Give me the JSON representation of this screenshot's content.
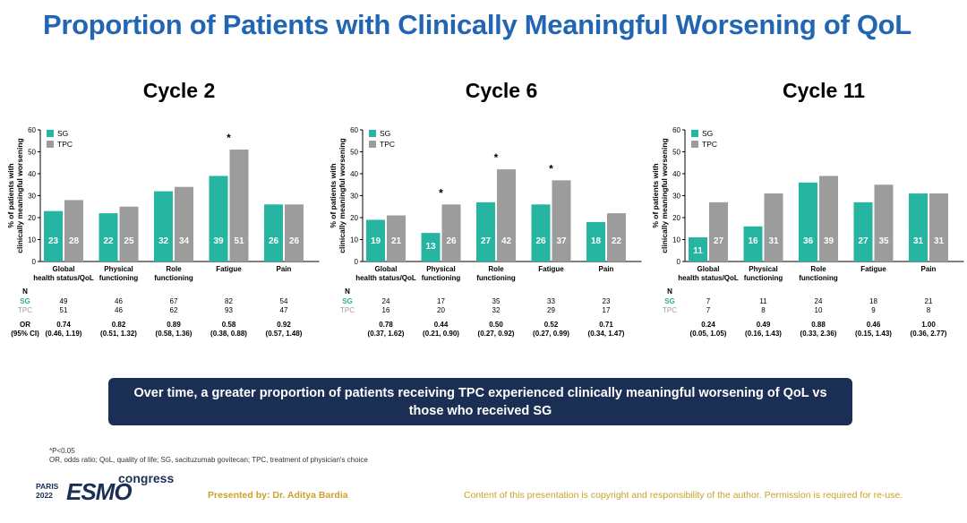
{
  "title": "Proportion of Patients with Clinically Meaningful Worsening of QoL",
  "colors": {
    "sg": "#26b5a0",
    "tpc": "#9c9c9c",
    "title": "#2266b3",
    "callout_bg": "#1b2f55",
    "footer": "#c9a227"
  },
  "chart_data": [
    {
      "type": "bar",
      "title": "Cycle 2",
      "ylabel": "% of patients with clinically meaningful worsening",
      "ylim": [
        0,
        60
      ],
      "yticks": [
        "0",
        "10",
        "20",
        "30",
        "40",
        "50",
        "60"
      ],
      "categories": [
        "Global health status/QoL",
        "Physical functioning",
        "Role functioning",
        "Fatigue",
        "Pain"
      ],
      "series": [
        {
          "name": "SG",
          "values": [
            23,
            22,
            32,
            39,
            26
          ]
        },
        {
          "name": "TPC",
          "values": [
            28,
            25,
            34,
            51,
            26
          ]
        }
      ],
      "significant": [
        "",
        "",
        "",
        "*",
        ""
      ],
      "n_label": "N",
      "n_sg": [
        "49",
        "46",
        "67",
        "82",
        "54"
      ],
      "n_tpc": [
        "51",
        "46",
        "62",
        "93",
        "47"
      ],
      "or_label": "OR",
      "ci_label": "(95% CI)",
      "or": [
        "0.74",
        "0.82",
        "0.89",
        "0.58",
        "0.92"
      ],
      "ci": [
        "(0.46, 1.19)",
        "(0.51, 1.32)",
        "(0.58, 1.36)",
        "(0.38, 0.88)",
        "(0.57, 1.48)"
      ]
    },
    {
      "type": "bar",
      "title": "Cycle 6",
      "ylabel": "% of patients with clinically meaningful worsening",
      "ylim": [
        0,
        60
      ],
      "yticks": [
        "0",
        "10",
        "20",
        "30",
        "40",
        "50",
        "60"
      ],
      "categories": [
        "Global health status/QoL",
        "Physical functioning",
        "Role functioning",
        "Fatigue",
        "Pain"
      ],
      "series": [
        {
          "name": "SG",
          "values": [
            19,
            13,
            27,
            26,
            18
          ]
        },
        {
          "name": "TPC",
          "values": [
            21,
            26,
            42,
            37,
            22
          ]
        }
      ],
      "significant": [
        "",
        "*",
        "*",
        "*",
        ""
      ],
      "n_label": "N",
      "n_sg": [
        "24",
        "17",
        "35",
        "33",
        "23"
      ],
      "n_tpc": [
        "16",
        "20",
        "32",
        "29",
        "17"
      ],
      "or_label": "",
      "ci_label": "",
      "or": [
        "0.78",
        "0.44",
        "0.50",
        "0.52",
        "0.71"
      ],
      "ci": [
        "(0.37, 1.62)",
        "(0.21, 0.90)",
        "(0.27, 0.92)",
        "(0.27, 0.99)",
        "(0.34, 1.47)"
      ]
    },
    {
      "type": "bar",
      "title": "Cycle 11",
      "ylabel": "% of patients with clinically meaningful worsening",
      "ylim": [
        0,
        60
      ],
      "yticks": [
        "0",
        "10",
        "20",
        "30",
        "40",
        "50",
        "60"
      ],
      "categories": [
        "Global health status/QoL",
        "Physical functioning",
        "Role functioning",
        "Fatigue",
        "Pain"
      ],
      "series": [
        {
          "name": "SG",
          "values": [
            11,
            16,
            36,
            27,
            31
          ]
        },
        {
          "name": "TPC",
          "values": [
            27,
            31,
            39,
            35,
            31
          ]
        }
      ],
      "significant": [
        "",
        "",
        "",
        "",
        ""
      ],
      "n_label": "N",
      "n_sg": [
        "7",
        "11",
        "24",
        "18",
        "21"
      ],
      "n_tpc": [
        "7",
        "8",
        "10",
        "9",
        "8"
      ],
      "or_label": "",
      "ci_label": "",
      "or": [
        "0.24",
        "0.49",
        "0.88",
        "0.46",
        "1.00"
      ],
      "ci": [
        "(0.05, 1.05)",
        "(0.16, 1.43)",
        "(0.33, 2.36)",
        "(0.15, 1.43)",
        "(0.36, 2.77)"
      ]
    }
  ],
  "callout": "Over time, a greater proportion of patients receiving TPC experienced clinically meaningful worsening of QoL vs those who received SG",
  "footnote_p": "*P<0.05",
  "footnote_abbrev": "OR, odds ratio; QoL, quality of life; SG, sacituzumab govitecan; TPC, treatment of physician's choice",
  "logo": {
    "city_year_line1": "PARIS",
    "city_year_line2": "2022",
    "brand": "ESMO",
    "suffix": "congress"
  },
  "presenter": "Presented by: Dr. Aditya Bardia",
  "copyright": "Content of this presentation is copyright and responsibility of the author. Permission is required for re-use."
}
